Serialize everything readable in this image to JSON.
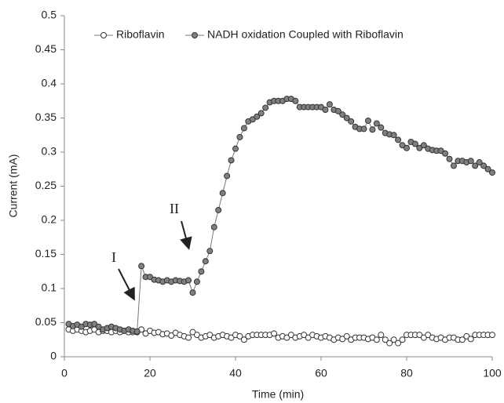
{
  "chart_data": {
    "type": "line",
    "x_label": "Time (min)",
    "y_label": "Current (mA)",
    "xlim": [
      0,
      100
    ],
    "xticks": [
      0,
      20,
      40,
      60,
      80,
      100
    ],
    "ylim": [
      0,
      0.5
    ],
    "yticks": [
      0,
      0.05,
      0.1,
      0.15,
      0.2,
      0.25,
      0.3,
      0.35,
      0.4,
      0.45,
      0.5
    ],
    "grid": false,
    "legend": "top",
    "annotations": [
      "I",
      "II"
    ],
    "x": [
      1,
      2,
      3,
      4,
      5,
      6,
      7,
      8,
      9,
      10,
      11,
      12,
      13,
      14,
      15,
      16,
      17,
      18,
      19,
      20,
      21,
      22,
      23,
      24,
      25,
      26,
      27,
      28,
      29,
      30,
      31,
      32,
      33,
      34,
      35,
      36,
      37,
      38,
      39,
      40,
      41,
      42,
      43,
      44,
      45,
      46,
      47,
      48,
      49,
      50,
      51,
      52,
      53,
      54,
      55,
      56,
      57,
      58,
      59,
      60,
      61,
      62,
      63,
      64,
      65,
      66,
      67,
      68,
      69,
      70,
      71,
      72,
      73,
      74,
      75,
      76,
      77,
      78,
      79,
      80,
      81,
      82,
      83,
      84,
      85,
      86,
      87,
      88,
      89,
      90,
      91,
      92,
      93,
      94,
      95,
      96,
      97,
      98,
      99,
      100
    ],
    "series": [
      {
        "name": "Riboflavin",
        "color": "#ffffff",
        "values": [
          0.04,
          0.038,
          0.04,
          0.038,
          0.036,
          0.038,
          0.04,
          0.036,
          0.038,
          0.038,
          0.036,
          0.038,
          0.036,
          0.038,
          0.036,
          0.036,
          0.036,
          0.04,
          0.034,
          0.038,
          0.035,
          0.036,
          0.033,
          0.034,
          0.031,
          0.035,
          0.032,
          0.03,
          0.028,
          0.036,
          0.032,
          0.028,
          0.03,
          0.032,
          0.028,
          0.03,
          0.032,
          0.03,
          0.028,
          0.032,
          0.03,
          0.025,
          0.03,
          0.032,
          0.032,
          0.032,
          0.032,
          0.032,
          0.034,
          0.028,
          0.03,
          0.028,
          0.032,
          0.028,
          0.03,
          0.032,
          0.028,
          0.032,
          0.03,
          0.028,
          0.03,
          0.028,
          0.025,
          0.028,
          0.026,
          0.03,
          0.025,
          0.028,
          0.028,
          0.028,
          0.026,
          0.028,
          0.025,
          0.032,
          0.025,
          0.02,
          0.025,
          0.02,
          0.025,
          0.032,
          0.032,
          0.032,
          0.032,
          0.028,
          0.032,
          0.028,
          0.026,
          0.028,
          0.025,
          0.028,
          0.028,
          0.025,
          0.025,
          0.03,
          0.026,
          0.032,
          0.032,
          0.032,
          0.032,
          0.032
        ]
      },
      {
        "name": "NADH oxidation Coupled with Riboflavin",
        "color": "#808080",
        "values": [
          0.048,
          0.045,
          0.047,
          0.044,
          0.048,
          0.047,
          0.048,
          0.044,
          0.04,
          0.042,
          0.044,
          0.042,
          0.04,
          0.038,
          0.04,
          0.038,
          0.037,
          0.133,
          0.117,
          0.117,
          0.113,
          0.112,
          0.11,
          0.112,
          0.11,
          0.112,
          0.111,
          0.11,
          0.112,
          0.094,
          0.11,
          0.125,
          0.14,
          0.155,
          0.19,
          0.215,
          0.24,
          0.265,
          0.288,
          0.305,
          0.322,
          0.335,
          0.345,
          0.348,
          0.352,
          0.357,
          0.365,
          0.373,
          0.375,
          0.375,
          0.375,
          0.378,
          0.378,
          0.375,
          0.366,
          0.366,
          0.366,
          0.366,
          0.366,
          0.366,
          0.362,
          0.37,
          0.362,
          0.36,
          0.355,
          0.35,
          0.345,
          0.337,
          0.334,
          0.334,
          0.346,
          0.333,
          0.342,
          0.336,
          0.328,
          0.326,
          0.325,
          0.318,
          0.31,
          0.306,
          0.315,
          0.312,
          0.306,
          0.31,
          0.305,
          0.303,
          0.302,
          0.302,
          0.298,
          0.29,
          0.28,
          0.287,
          0.287,
          0.285,
          0.287,
          0.28,
          0.285,
          0.28,
          0.275,
          0.27
        ]
      }
    ]
  }
}
